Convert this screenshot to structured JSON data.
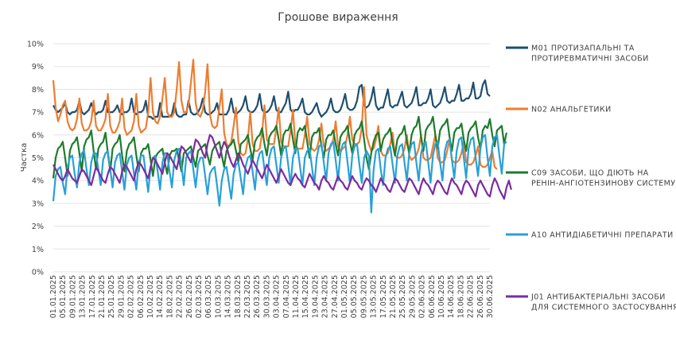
{
  "chart_data": {
    "type": "line",
    "title": "Грошове вираження",
    "ylabel": "Частка",
    "xlabel": "",
    "ylim": [
      0,
      10
    ],
    "yticks": [
      "0%",
      "1%",
      "2%",
      "3%",
      "4%",
      "5%",
      "6%",
      "7%",
      "8%",
      "9%",
      "10%"
    ],
    "grid": true,
    "legend_position": "right",
    "x_start": "01.01.2025",
    "x_end": "30.06.2025",
    "x_ticks": [
      "01.01.2025",
      "05.01.2025",
      "09.01.2025",
      "13.01.2025",
      "17.01.2025",
      "21.01.2025",
      "25.01.2025",
      "29.01.2025",
      "02.02.2025",
      "06.02.2025",
      "10.02.2025",
      "14.02.2025",
      "18.02.2025",
      "22.02.2025",
      "26.02.2025",
      "02.03.2025",
      "06.03.2025",
      "10.03.2025",
      "14.03.2025",
      "18.03.2025",
      "22.03.2025",
      "26.03.2025",
      "30.03.2025",
      "03.04.2025",
      "07.04.2025",
      "11.04.2025",
      "15.04.2025",
      "19.04.2025",
      "23.04.2025",
      "27.04.2025",
      "01.05.2025",
      "05.05.2025",
      "09.05.2025",
      "13.05.2025",
      "17.05.2025",
      "21.05.2025",
      "25.05.2025",
      "29.05.2025",
      "02.06.2025",
      "06.06.2025",
      "10.06.2025",
      "14.06.2025",
      "18.06.2025",
      "22.06.2025",
      "26.06.2025",
      "30.06.2025"
    ],
    "series": [
      {
        "name": "M01 ПРОТИЗАПАЛЬНІ ТА ПРОТИРЕВМАТИЧНІ ЗАСОБИ",
        "color": "#1f4e6e",
        "values": [
          7.3,
          7.1,
          7.0,
          7.1,
          7.2,
          7.4,
          7.0,
          6.9,
          7.0,
          7.0,
          7.1,
          7.5,
          7.0,
          6.9,
          7.0,
          7.1,
          7.4,
          7.1,
          6.9,
          7.0,
          7.0,
          7.1,
          7.5,
          7.0,
          7.0,
          7.0,
          7.1,
          7.3,
          7.0,
          6.9,
          7.0,
          7.0,
          7.1,
          7.6,
          7.0,
          6.9,
          7.0,
          7.0,
          7.1,
          7.5,
          6.8,
          6.8,
          6.7,
          6.8,
          6.8,
          7.4,
          6.8,
          6.8,
          6.8,
          6.8,
          6.9,
          7.4,
          6.9,
          6.8,
          6.8,
          6.9,
          6.9,
          7.5,
          7.0,
          6.9,
          6.9,
          7.0,
          7.2,
          7.6,
          7.0,
          6.9,
          6.9,
          7.0,
          7.1,
          7.4,
          6.9,
          6.9,
          6.9,
          6.9,
          7.1,
          7.6,
          7.0,
          6.9,
          7.0,
          7.1,
          7.3,
          7.7,
          7.1,
          7.0,
          7.0,
          7.1,
          7.3,
          7.8,
          7.1,
          7.0,
          7.0,
          7.1,
          7.3,
          7.7,
          7.1,
          7.0,
          7.0,
          7.2,
          7.4,
          7.9,
          7.1,
          7.0,
          7.1,
          7.1,
          7.3,
          7.6,
          7.0,
          6.9,
          6.9,
          7.0,
          7.2,
          7.4,
          7.0,
          6.8,
          6.9,
          7.0,
          7.2,
          7.6,
          7.1,
          7.0,
          7.0,
          7.1,
          7.4,
          7.8,
          7.2,
          7.1,
          7.1,
          7.2,
          7.5,
          8.1,
          8.2,
          7.3,
          7.2,
          7.3,
          7.6,
          8.1,
          7.3,
          7.1,
          7.2,
          7.2,
          7.6,
          8.0,
          7.3,
          7.2,
          7.3,
          7.3,
          7.6,
          7.9,
          7.3,
          7.2,
          7.3,
          7.4,
          7.7,
          8.1,
          7.3,
          7.3,
          7.4,
          7.4,
          7.6,
          8.0,
          7.3,
          7.2,
          7.3,
          7.4,
          7.7,
          8.1,
          7.5,
          7.4,
          7.5,
          7.5,
          7.8,
          8.2,
          7.5,
          7.5,
          7.6,
          7.6,
          7.8,
          8.3,
          7.6,
          7.6,
          7.7,
          8.2,
          8.4,
          7.8,
          7.7
        ]
      },
      {
        "name": "N02 АНАЛЬГЕТИКИ",
        "color": "#ed7d31",
        "values": [
          8.4,
          7.2,
          6.6,
          6.9,
          7.3,
          7.5,
          6.6,
          6.3,
          6.2,
          6.3,
          6.7,
          7.6,
          6.5,
          6.2,
          6.2,
          6.3,
          6.6,
          7.5,
          6.4,
          6.2,
          6.2,
          6.4,
          6.7,
          7.8,
          6.4,
          6.1,
          6.1,
          6.3,
          6.6,
          7.6,
          6.3,
          6.0,
          6.1,
          6.2,
          6.6,
          7.8,
          6.4,
          6.1,
          6.2,
          6.3,
          7.0,
          8.5,
          7.0,
          6.6,
          6.5,
          6.8,
          7.6,
          8.5,
          7.0,
          6.8,
          6.8,
          7.0,
          8.0,
          9.2,
          7.5,
          7.0,
          7.0,
          7.3,
          8.3,
          9.3,
          7.4,
          6.9,
          6.8,
          7.1,
          7.9,
          9.1,
          6.9,
          6.4,
          6.3,
          6.4,
          7.2,
          8.0,
          6.1,
          5.6,
          5.5,
          5.7,
          6.4,
          7.2,
          5.7,
          5.2,
          5.1,
          5.2,
          5.8,
          7.0,
          5.6,
          5.3,
          5.3,
          5.4,
          6.1,
          7.3,
          5.8,
          5.6,
          5.6,
          5.6,
          6.3,
          7.2,
          5.7,
          5.5,
          5.5,
          5.5,
          6.2,
          7.1,
          5.6,
          5.4,
          5.4,
          5.4,
          6.0,
          6.8,
          5.6,
          5.4,
          5.3,
          5.4,
          5.8,
          6.5,
          5.5,
          5.3,
          5.4,
          5.5,
          5.8,
          6.6,
          5.5,
          5.3,
          5.4,
          5.5,
          6.0,
          6.8,
          5.8,
          5.6,
          5.6,
          5.7,
          6.3,
          8.1,
          6.0,
          5.6,
          5.3,
          5.4,
          5.8,
          6.4,
          5.3,
          5.1,
          5.1,
          5.2,
          5.6,
          6.1,
          5.1,
          5.0,
          5.0,
          5.1,
          5.4,
          6.0,
          5.1,
          4.9,
          5.0,
          5.1,
          5.4,
          6.0,
          5.0,
          4.9,
          4.9,
          5.0,
          5.5,
          6.0,
          5.0,
          4.8,
          4.8,
          4.9,
          5.3,
          5.8,
          4.9,
          4.8,
          4.8,
          4.9,
          5.2,
          5.7,
          4.8,
          4.7,
          4.7,
          4.8,
          5.1,
          5.5,
          4.7,
          4.6,
          4.6,
          4.7,
          5.0,
          5.3,
          4.6,
          4.5
        ]
      },
      {
        "name": "C09 ЗАСОБИ, ЩО ДІЮТЬ НА РЕНІН-АНГІОТЕНЗИНОВУ СИСТЕМУ",
        "color": "#1e7b2c",
        "values": [
          4.1,
          5.0,
          5.4,
          5.5,
          5.7,
          5.0,
          4.2,
          5.3,
          5.6,
          5.7,
          5.9,
          5.2,
          4.4,
          5.5,
          5.8,
          5.9,
          6.2,
          5.3,
          4.5,
          5.4,
          5.6,
          5.7,
          6.1,
          5.2,
          4.4,
          5.4,
          5.6,
          5.7,
          6.0,
          5.1,
          4.4,
          5.3,
          5.6,
          5.7,
          5.9,
          5.1,
          4.4,
          5.2,
          5.4,
          5.4,
          5.6,
          4.9,
          4.2,
          5.0,
          5.2,
          5.3,
          5.4,
          4.8,
          4.3,
          5.1,
          5.3,
          5.3,
          5.4,
          4.9,
          4.4,
          5.2,
          5.3,
          5.4,
          5.5,
          5.0,
          4.6,
          5.3,
          5.4,
          5.5,
          5.6,
          5.1,
          4.7,
          5.3,
          5.5,
          5.6,
          5.7,
          5.1,
          4.6,
          5.3,
          5.5,
          5.6,
          5.8,
          5.3,
          4.8,
          5.6,
          5.7,
          5.8,
          6.0,
          5.4,
          4.9,
          5.7,
          5.9,
          6.0,
          6.3,
          5.6,
          5.1,
          5.9,
          6.1,
          6.2,
          6.4,
          5.8,
          5.1,
          6.0,
          6.2,
          6.2,
          6.5,
          5.8,
          5.2,
          6.1,
          6.3,
          6.2,
          6.4,
          5.7,
          5.0,
          5.9,
          6.1,
          6.1,
          6.3,
          5.5,
          5.0,
          5.8,
          6.0,
          6.0,
          6.2,
          5.6,
          5.1,
          5.9,
          6.1,
          6.2,
          6.4,
          5.7,
          5.2,
          6.0,
          6.2,
          6.3,
          6.6,
          5.8,
          5.0,
          4.5,
          5.2,
          5.7,
          6.0,
          6.1,
          5.3,
          5.8,
          6.0,
          6.1,
          6.3,
          5.6,
          5.1,
          5.8,
          6.0,
          6.1,
          6.4,
          5.7,
          5.2,
          6.0,
          6.3,
          6.4,
          6.8,
          5.9,
          5.3,
          6.2,
          6.4,
          6.5,
          6.8,
          6.0,
          5.4,
          6.2,
          6.4,
          6.5,
          6.7,
          5.9,
          5.3,
          6.1,
          6.3,
          6.3,
          6.5,
          5.8,
          5.3,
          6.1,
          6.3,
          6.4,
          6.6,
          5.9,
          5.4,
          6.2,
          6.4,
          6.3,
          6.7,
          6.0,
          5.5,
          6.2,
          6.3,
          6.4,
          5.6,
          6.1
        ]
      },
      {
        "name": "A10 АНТИДІАБЕТИЧНІ ПРЕПАРАТИ",
        "color": "#28a0d8",
        "values": [
          3.1,
          4.2,
          4.5,
          4.6,
          3.9,
          3.4,
          4.6,
          5.0,
          5.1,
          4.3,
          3.7,
          4.8,
          5.2,
          5.3,
          4.5,
          3.8,
          4.8,
          5.2,
          5.2,
          4.5,
          3.8,
          4.9,
          5.2,
          5.3,
          4.5,
          3.7,
          4.8,
          5.1,
          5.2,
          4.4,
          3.6,
          4.7,
          5.0,
          5.1,
          4.3,
          3.6,
          4.8,
          5.1,
          5.1,
          4.3,
          3.5,
          4.6,
          5.0,
          5.1,
          4.4,
          3.6,
          4.8,
          5.2,
          5.2,
          4.4,
          3.7,
          4.9,
          5.3,
          5.4,
          4.7,
          3.8,
          5.0,
          5.2,
          5.3,
          4.5,
          3.7,
          4.7,
          5.0,
          5.0,
          4.2,
          3.4,
          4.3,
          4.5,
          4.6,
          3.8,
          2.9,
          4.0,
          4.5,
          4.6,
          3.9,
          3.2,
          4.3,
          4.7,
          4.8,
          4.1,
          3.4,
          4.6,
          5.0,
          5.1,
          4.4,
          3.6,
          4.8,
          5.2,
          5.3,
          4.5,
          3.8,
          5.0,
          5.4,
          5.5,
          4.7,
          3.9,
          5.0,
          5.4,
          5.5,
          4.7,
          3.8,
          5.0,
          5.4,
          5.4,
          4.6,
          3.8,
          5.0,
          5.3,
          5.4,
          4.6,
          3.8,
          5.0,
          5.5,
          5.6,
          4.8,
          4.0,
          5.2,
          5.6,
          5.7,
          4.9,
          4.0,
          5.2,
          5.6,
          5.7,
          4.8,
          3.9,
          5.1,
          5.5,
          5.6,
          4.7,
          3.9,
          5.0,
          5.3,
          5.1,
          2.6,
          4.5,
          5.3,
          5.4,
          4.5,
          3.8,
          5.0,
          5.4,
          5.5,
          4.7,
          3.9,
          5.1,
          5.5,
          5.6,
          4.8,
          4.0,
          5.2,
          5.6,
          5.7,
          4.8,
          4.0,
          5.2,
          5.6,
          5.7,
          4.8,
          3.9,
          5.1,
          5.6,
          5.7,
          4.8,
          4.0,
          5.3,
          5.7,
          5.8,
          4.9,
          4.1,
          5.3,
          5.8,
          5.9,
          5.0,
          4.1,
          5.4,
          5.8,
          5.9,
          5.0,
          4.2,
          5.4,
          5.9,
          6.0,
          5.0,
          4.2,
          5.5,
          5.9,
          6.0,
          5.1,
          4.3,
          5.6,
          5.7
        ]
      },
      {
        "name": "J01 АНТИБАКТЕРІАЛЬНІ ЗАСОБИ ДЛЯ СИСТЕМНОГО ЗАСТОСУВАННЯ",
        "color": "#7b2c9e",
        "values": [
          4.7,
          4.5,
          4.3,
          4.1,
          4.0,
          4.2,
          4.5,
          4.3,
          4.1,
          4.0,
          3.9,
          4.2,
          4.5,
          4.4,
          4.2,
          4.0,
          3.8,
          4.2,
          4.6,
          4.4,
          4.2,
          4.0,
          3.9,
          4.3,
          4.6,
          4.5,
          4.3,
          4.1,
          3.9,
          4.4,
          4.7,
          4.6,
          4.4,
          4.2,
          4.0,
          4.5,
          4.8,
          4.7,
          4.5,
          4.3,
          4.1,
          4.6,
          5.0,
          4.9,
          4.7,
          4.5,
          4.3,
          4.8,
          5.2,
          5.1,
          4.9,
          4.7,
          4.5,
          5.0,
          5.5,
          5.4,
          5.2,
          5.0,
          4.8,
          5.3,
          5.8,
          5.7,
          5.5,
          5.2,
          5.0,
          5.6,
          6.0,
          5.9,
          5.6,
          5.3,
          5.0,
          5.4,
          5.7,
          5.5,
          5.1,
          4.8,
          4.6,
          4.9,
          5.2,
          5.0,
          4.7,
          4.5,
          4.3,
          4.6,
          4.9,
          4.7,
          4.5,
          4.3,
          4.1,
          4.4,
          4.7,
          4.5,
          4.3,
          4.1,
          3.9,
          4.2,
          4.5,
          4.3,
          4.1,
          3.9,
          3.8,
          4.1,
          4.3,
          4.1,
          4.0,
          3.8,
          3.7,
          4.0,
          4.3,
          4.1,
          3.9,
          3.8,
          3.6,
          4.0,
          4.2,
          4.0,
          3.9,
          3.7,
          3.6,
          3.9,
          4.2,
          4.0,
          3.9,
          3.7,
          3.6,
          3.9,
          4.2,
          4.0,
          3.9,
          3.7,
          3.6,
          3.9,
          4.1,
          4.0,
          3.8,
          3.7,
          3.5,
          3.8,
          4.1,
          3.9,
          3.8,
          3.6,
          3.5,
          3.8,
          4.1,
          4.0,
          3.8,
          3.6,
          3.5,
          3.8,
          4.1,
          4.0,
          3.8,
          3.6,
          3.4,
          3.8,
          4.1,
          3.9,
          3.8,
          3.6,
          3.4,
          3.8,
          4.0,
          3.9,
          3.7,
          3.5,
          3.4,
          3.8,
          4.1,
          3.9,
          3.8,
          3.6,
          3.4,
          3.8,
          4.0,
          3.9,
          3.7,
          3.5,
          3.3,
          3.8,
          4.0,
          3.8,
          3.6,
          3.4,
          3.3,
          3.8,
          4.1,
          3.9,
          3.6,
          3.4,
          3.2,
          3.7,
          4.0,
          3.6
        ]
      }
    ]
  }
}
